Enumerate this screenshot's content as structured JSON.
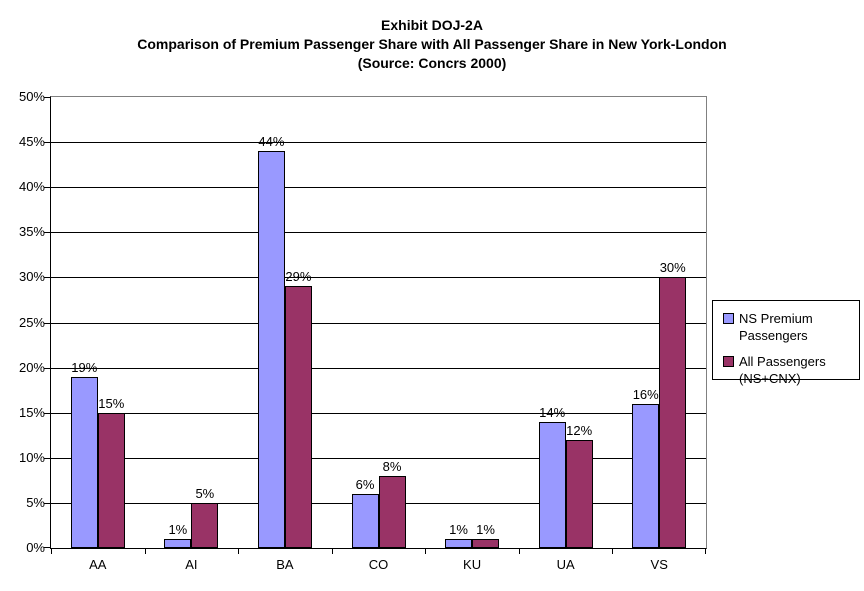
{
  "title": {
    "line1": "Exhibit DOJ-2A",
    "line2": "Comparison of Premium Passenger Share with All Passenger Share in New York-London",
    "line3": "(Source: Concrs 2000)"
  },
  "chart_data": {
    "type": "bar",
    "title": "Exhibit DOJ-2A — Comparison of Premium Passenger Share with All Passenger Share in New York-London (Source: Concrs 2000)",
    "categories": [
      "AA",
      "AI",
      "BA",
      "CO",
      "KU",
      "UA",
      "VS"
    ],
    "series": [
      {
        "name": "NS Premium Passengers",
        "color": "#9999FF",
        "values": [
          19,
          1,
          44,
          6,
          1,
          14,
          16
        ],
        "labels": [
          "19%",
          "1%",
          "44%",
          "6%",
          "1%",
          "14%",
          "16%"
        ]
      },
      {
        "name": "All Passengers (NS+CNX)",
        "color": "#993366",
        "values": [
          15,
          5,
          29,
          8,
          1,
          12,
          30
        ],
        "labels": [
          "15%",
          "5%",
          "29%",
          "8%",
          "1%",
          "12%",
          "30%"
        ]
      }
    ],
    "xlabel": "",
    "ylabel": "",
    "ylim": [
      0,
      50
    ],
    "ytick_step": 5,
    "ytick_labels": [
      "0%",
      "5%",
      "10%",
      "15%",
      "20%",
      "25%",
      "30%",
      "35%",
      "40%",
      "45%",
      "50%"
    ],
    "grid": "horizontal",
    "legend_position": "right"
  },
  "colors": {
    "series1": "#9999FF",
    "series2": "#993366",
    "plot_border": "#808080",
    "gridline": "#000000",
    "axis": "#000000",
    "background": "#FFFFFF",
    "text": "#000000"
  }
}
